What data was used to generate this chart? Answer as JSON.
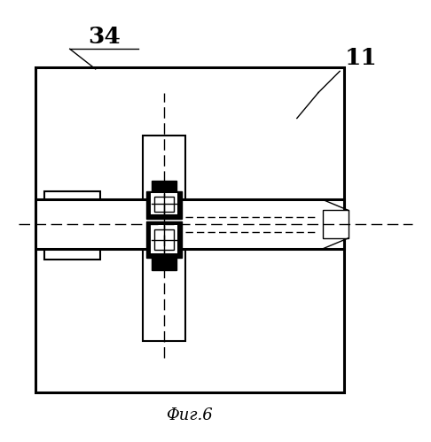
{
  "bg_color": "#ffffff",
  "line_color": "#000000",
  "fig_width": 4.86,
  "fig_height": 4.99,
  "dpi": 100,
  "caption": "Φиг.6",
  "label_34": "34",
  "label_11": "11",
  "lw_thick": 2.2,
  "lw_medium": 1.5,
  "lw_thin": 1.0
}
